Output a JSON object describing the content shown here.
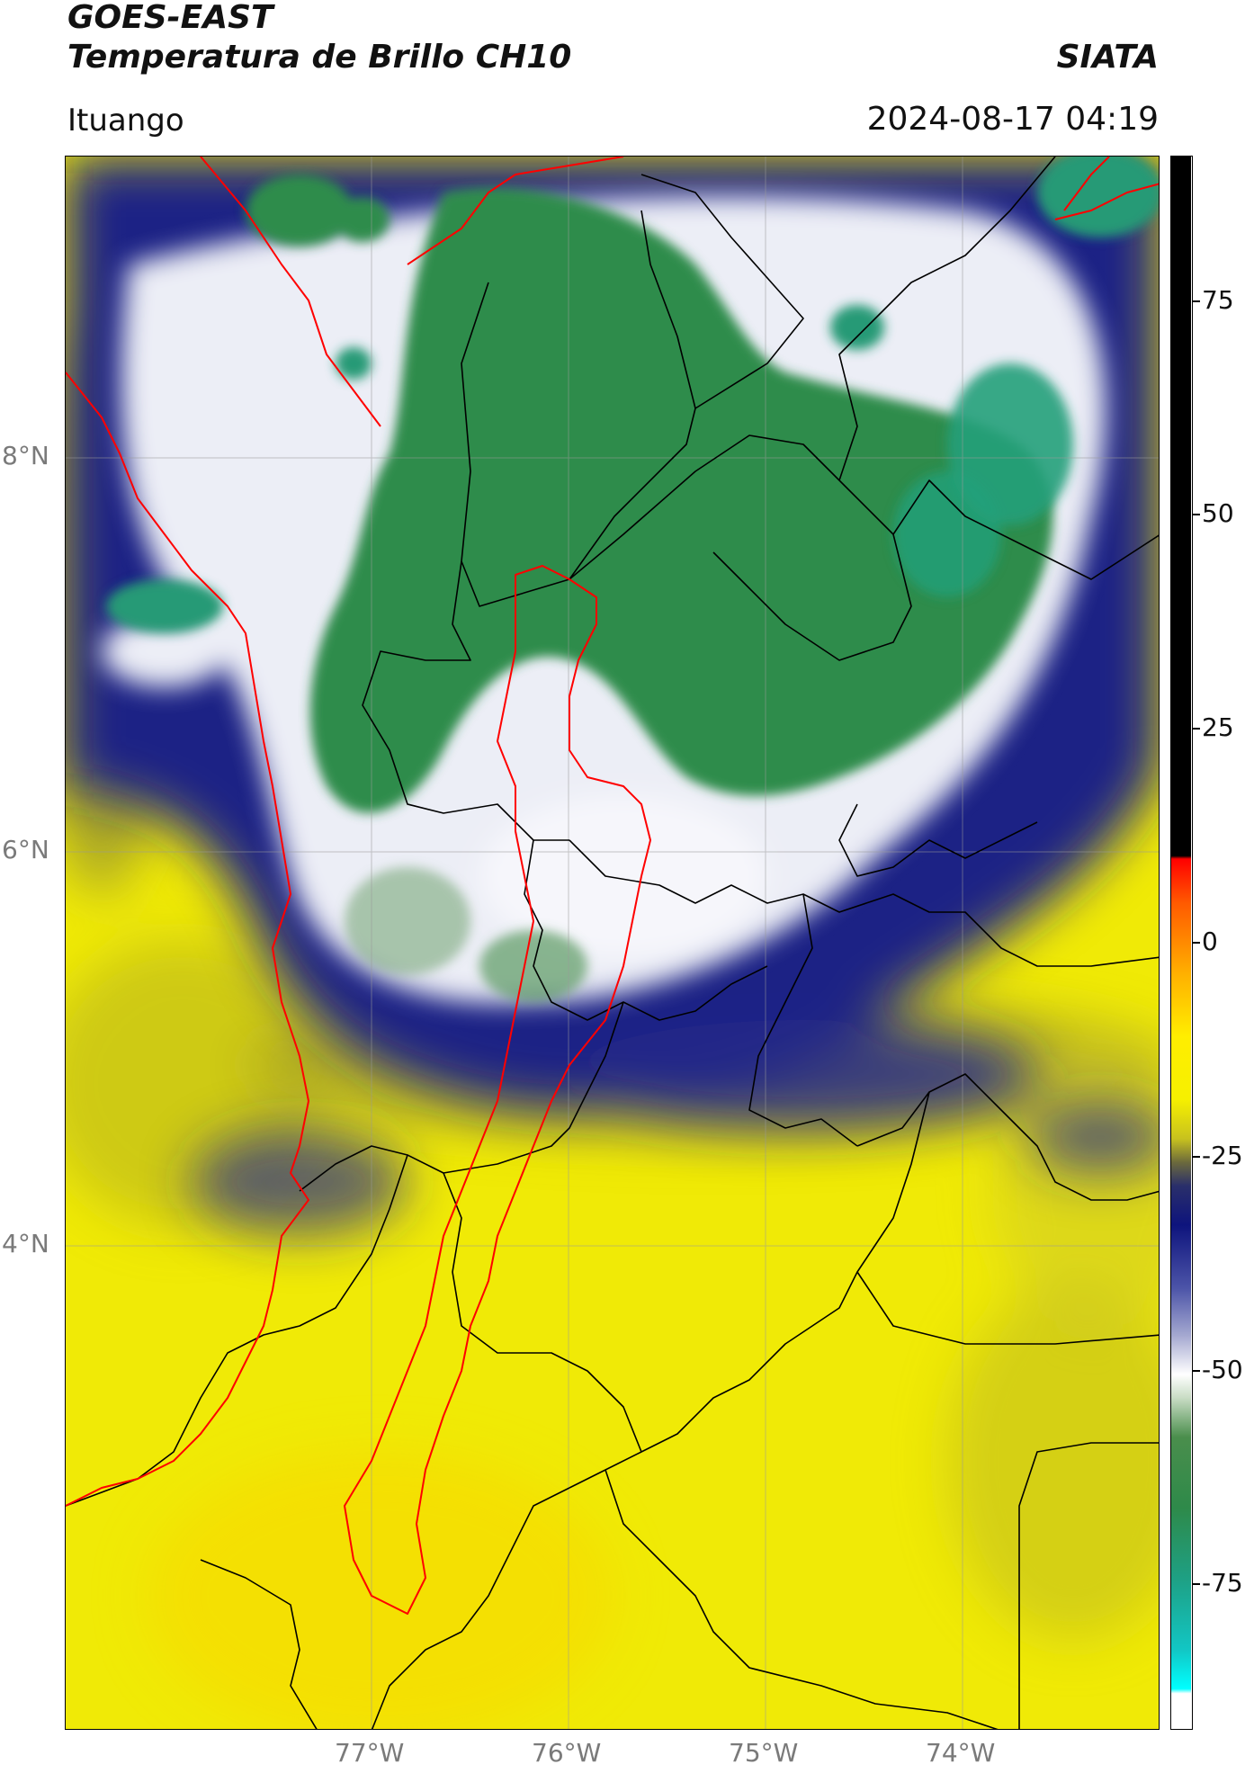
{
  "header": {
    "satellite": "GOES-EAST",
    "product": "Temperatura de Brillo CH10",
    "organization": "SIATA",
    "location": "Ituango",
    "datetime": "2024-08-17 04:19"
  },
  "map": {
    "lat_labels": [
      "8°N",
      "6°N",
      "4°N"
    ],
    "lon_labels": [
      "77°W",
      "76°W",
      "75°W",
      "74°W"
    ],
    "region_lon_range": [
      -78.55,
      -73.0
    ],
    "region_lat_range": [
      2.05,
      9.55
    ],
    "field_colors": {
      "warm": "#f2ee05",
      "warm_dim": "#c9c21a",
      "cold_blue": "#1b1f80",
      "mid": "#e6e8f2",
      "very_cold": "#2e8a4a",
      "coldest": "#23a07a"
    },
    "boundary_colors": {
      "national": "#ff0000",
      "departmental": "#000000"
    }
  },
  "colorbar": {
    "ticks": [
      "75",
      "50",
      "25",
      "0",
      "-25",
      "-50",
      "-75"
    ],
    "tick_values": [
      75,
      50,
      25,
      0,
      -25,
      -50,
      -75
    ],
    "range": [
      -92,
      92
    ]
  }
}
